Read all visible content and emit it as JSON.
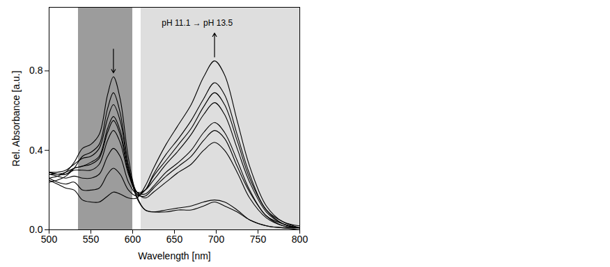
{
  "chart_data": {
    "type": "line",
    "xlabel": "Wavelength [nm]",
    "ylabel": "Rel. Absorbance [a.u.]",
    "xlim": [
      500,
      800
    ],
    "xticks": [
      500,
      550,
      600,
      650,
      700,
      750,
      800
    ],
    "ylim": [
      0,
      1.12
    ],
    "yticks": [
      {
        "value": 0,
        "label": "0.0"
      },
      0.4,
      0.8
    ],
    "grid": false,
    "annotations": [
      {
        "text": "pH 11.1 → pH 13.5"
      }
    ],
    "shaded_regions": [
      {
        "x1": 535,
        "x2": 600,
        "color": "#9c9c9c"
      },
      {
        "x1": 610,
        "x2": 800,
        "color": "#dedede"
      }
    ],
    "x": [
      500,
      510,
      520,
      530,
      540,
      550,
      560,
      570,
      577,
      585,
      595,
      605,
      615,
      625,
      640,
      655,
      670,
      685,
      698,
      710,
      725,
      740,
      760,
      780,
      800
    ],
    "series": [
      {
        "color": "#000000",
        "values": [
          0.26,
          0.27,
          0.29,
          0.34,
          0.41,
          0.43,
          0.48,
          0.68,
          0.77,
          0.66,
          0.36,
          0.17,
          0.1,
          0.09,
          0.09,
          0.1,
          0.1,
          0.12,
          0.14,
          0.12,
          0.09,
          0.05,
          0.02,
          0.01,
          0.01
        ]
      },
      {
        "color": "#000000",
        "values": [
          0.24,
          0.25,
          0.27,
          0.31,
          0.37,
          0.39,
          0.43,
          0.61,
          0.69,
          0.59,
          0.32,
          0.16,
          0.1,
          0.09,
          0.1,
          0.11,
          0.12,
          0.14,
          0.15,
          0.14,
          0.1,
          0.05,
          0.02,
          0.01,
          0.0
        ]
      },
      {
        "color": "#000000",
        "values": [
          0.29,
          0.29,
          0.3,
          0.33,
          0.36,
          0.37,
          0.41,
          0.56,
          0.63,
          0.55,
          0.32,
          0.19,
          0.16,
          0.19,
          0.24,
          0.29,
          0.33,
          0.4,
          0.44,
          0.4,
          0.29,
          0.16,
          0.06,
          0.02,
          0.01
        ]
      },
      {
        "color": "#000000",
        "values": [
          0.28,
          0.28,
          0.28,
          0.31,
          0.32,
          0.34,
          0.37,
          0.51,
          0.57,
          0.5,
          0.3,
          0.18,
          0.17,
          0.21,
          0.27,
          0.32,
          0.37,
          0.45,
          0.5,
          0.46,
          0.32,
          0.19,
          0.07,
          0.02,
          0.01
        ]
      },
      {
        "color": "#000000",
        "values": [
          0.29,
          0.28,
          0.29,
          0.31,
          0.32,
          0.33,
          0.36,
          0.49,
          0.55,
          0.48,
          0.29,
          0.19,
          0.18,
          0.22,
          0.29,
          0.34,
          0.4,
          0.49,
          0.54,
          0.49,
          0.35,
          0.2,
          0.07,
          0.03,
          0.01
        ]
      },
      {
        "color": "#000000",
        "values": [
          0.29,
          0.28,
          0.28,
          0.3,
          0.3,
          0.3,
          0.33,
          0.45,
          0.5,
          0.44,
          0.28,
          0.19,
          0.2,
          0.25,
          0.33,
          0.4,
          0.48,
          0.58,
          0.64,
          0.58,
          0.41,
          0.24,
          0.09,
          0.03,
          0.01
        ]
      },
      {
        "color": "#000000",
        "values": [
          0.28,
          0.27,
          0.26,
          0.27,
          0.26,
          0.26,
          0.28,
          0.37,
          0.41,
          0.37,
          0.24,
          0.18,
          0.2,
          0.27,
          0.35,
          0.43,
          0.51,
          0.62,
          0.69,
          0.63,
          0.45,
          0.26,
          0.1,
          0.03,
          0.01
        ]
      },
      {
        "color": "#000000",
        "values": [
          0.26,
          0.24,
          0.23,
          0.24,
          0.2,
          0.2,
          0.21,
          0.28,
          0.31,
          0.28,
          0.2,
          0.17,
          0.2,
          0.28,
          0.38,
          0.46,
          0.55,
          0.66,
          0.74,
          0.68,
          0.48,
          0.28,
          0.1,
          0.04,
          0.01
        ]
      },
      {
        "color": "#000000",
        "values": [
          0.25,
          0.23,
          0.21,
          0.2,
          0.15,
          0.14,
          0.14,
          0.17,
          0.19,
          0.18,
          0.16,
          0.16,
          0.22,
          0.31,
          0.43,
          0.53,
          0.63,
          0.77,
          0.85,
          0.78,
          0.55,
          0.32,
          0.12,
          0.04,
          0.02
        ]
      }
    ]
  }
}
